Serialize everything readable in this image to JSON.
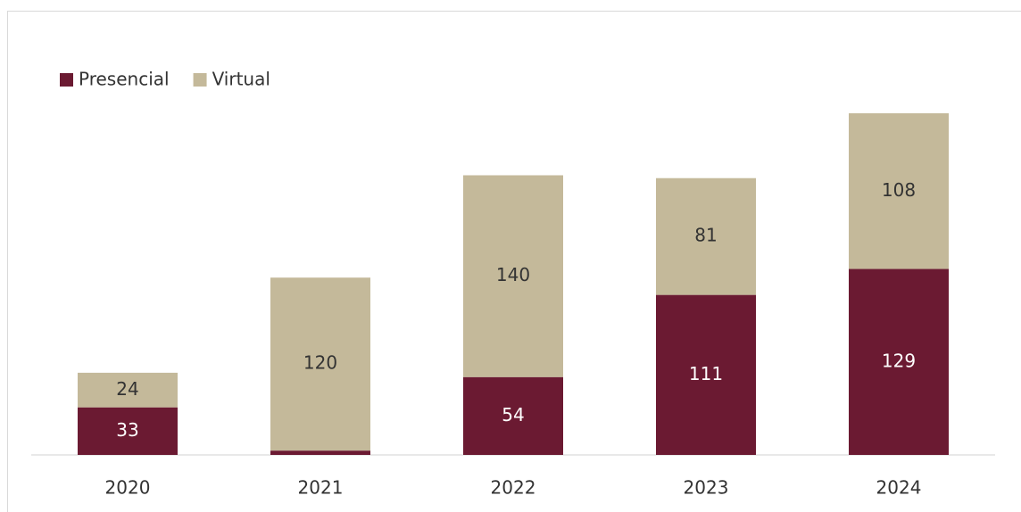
{
  "chart_data": {
    "type": "stacked_bar",
    "categories": [
      "2020",
      "2021",
      "2022",
      "2023",
      "2024"
    ],
    "series": [
      {
        "name": "Presencial",
        "color": "#6b1a32",
        "values": [
          33,
          3,
          54,
          111,
          129
        ]
      },
      {
        "name": "Virtual",
        "color": "#c4b99a",
        "values": [
          24,
          120,
          140,
          81,
          108
        ]
      }
    ],
    "legend": "top-left"
  }
}
